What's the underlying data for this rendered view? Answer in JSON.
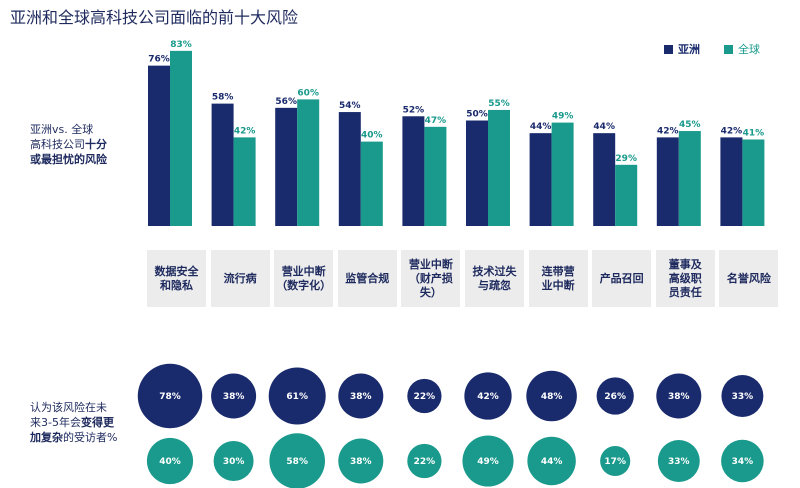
{
  "title": "亚洲和全球高科技公司面临的前十大风险",
  "legend": {
    "asia": "亚洲",
    "global": "全球"
  },
  "colors": {
    "asia": "#1a2b6d",
    "global": "#1a9a8c"
  },
  "side_label_top": {
    "line1": "亚洲vs. 全球",
    "line2_plain": "高科技公司",
    "line2_bold": "十分",
    "line3": "或最担忧的风险"
  },
  "side_label_bottom": {
    "line1": "认为该风险在未",
    "line2_plain": "来3-5年会",
    "line2_bold": "变得更",
    "line3_bold": "加复杂",
    "line3_plain": "的受访者%"
  },
  "chart_data": [
    {
      "type": "bar",
      "categories": [
        "数据安全\n和隐私",
        "流行病",
        "营业中断\n（数字化）",
        "监管合规",
        "营业中断\n（财产损失）",
        "技术过失\n与疏忽",
        "连带营\n业中断",
        "产品召回",
        "董事及\n高级职\n员责任",
        "名誉风险"
      ],
      "series": [
        {
          "name": "亚洲",
          "values": [
            76,
            58,
            56,
            54,
            52,
            50,
            44,
            44,
            42,
            42
          ]
        },
        {
          "name": "全球",
          "values": [
            83,
            42,
            60,
            40,
            47,
            55,
            49,
            29,
            45,
            41
          ]
        }
      ],
      "value_suffix": "%"
    },
    {
      "type": "bubble",
      "categories": [
        "数据安全\n和隐私",
        "流行病",
        "营业中断\n（数字化）",
        "监管合规",
        "营业中断\n（财产损失）",
        "技术过失\n与疏忽",
        "连带营\n业中断",
        "产品召回",
        "董事及\n高级职\n员责任",
        "名誉风险"
      ],
      "series": [
        {
          "name": "亚洲",
          "values": [
            78,
            38,
            61,
            38,
            22,
            42,
            48,
            26,
            38,
            33
          ]
        },
        {
          "name": "全球",
          "values": [
            40,
            30,
            58,
            38,
            22,
            49,
            44,
            17,
            33,
            34
          ]
        }
      ],
      "value_suffix": "%"
    }
  ]
}
